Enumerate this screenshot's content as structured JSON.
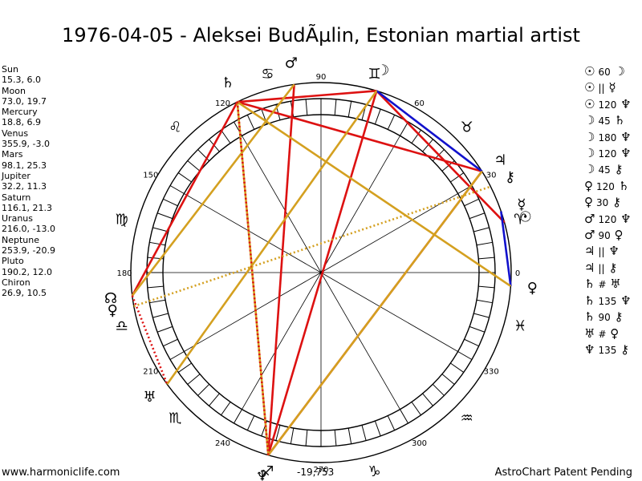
{
  "title": "1976-04-05 - Aleksei BudÃµlin, Estonian martial artist",
  "planets": [
    {
      "name": "Sun",
      "pos": "15.3, 6.0"
    },
    {
      "name": "Moon",
      "pos": "73.0, 19.7"
    },
    {
      "name": "Mercury",
      "pos": "18.8, 6.9"
    },
    {
      "name": "Venus",
      "pos": "355.9, -3.0"
    },
    {
      "name": "Mars",
      "pos": "98.1, 25.3"
    },
    {
      "name": "Jupiter",
      "pos": "32.2, 11.3"
    },
    {
      "name": "Saturn",
      "pos": "116.1, 21.3"
    },
    {
      "name": "Uranus",
      "pos": "216.0, -13.0"
    },
    {
      "name": "Neptune",
      "pos": "253.9, -20.9"
    },
    {
      "name": "Pluto",
      "pos": "190.2, 12.0"
    },
    {
      "name": "Chiron",
      "pos": "26.9, 10.5"
    }
  ],
  "aspects": [
    {
      "p1": "☉",
      "angle": "60",
      "p2": "☽"
    },
    {
      "p1": "☉",
      "angle": "||",
      "p2": "☿"
    },
    {
      "p1": "☉",
      "angle": "120",
      "p2": "♆"
    },
    {
      "p1": "☽",
      "angle": "45",
      "p2": "♄"
    },
    {
      "p1": "☽",
      "angle": "180",
      "p2": "♆"
    },
    {
      "p1": "☽",
      "angle": "120",
      "p2": "♆"
    },
    {
      "p1": "☽",
      "angle": "45",
      "p2": "⚷"
    },
    {
      "p1": "♀",
      "angle": "120",
      "p2": "♄"
    },
    {
      "p1": "♀",
      "angle": "30",
      "p2": "⚷"
    },
    {
      "p1": "♂",
      "angle": "120",
      "p2": "♆"
    },
    {
      "p1": "♂",
      "angle": "90",
      "p2": "♀"
    },
    {
      "p1": "♃",
      "angle": "||",
      "p2": "♆"
    },
    {
      "p1": "♃",
      "angle": "||",
      "p2": "⚷"
    },
    {
      "p1": "♄",
      "angle": "#",
      "p2": "♅"
    },
    {
      "p1": "♄",
      "angle": "135",
      "p2": "♆"
    },
    {
      "p1": "♄",
      "angle": "90",
      "p2": "⚷"
    },
    {
      "p1": "♅",
      "angle": "#",
      "p2": "♀"
    },
    {
      "p1": "♆",
      "angle": "135",
      "p2": "⚷"
    }
  ],
  "wheel": {
    "degree_labels": [
      "0",
      "30",
      "60",
      "90",
      "120",
      "150",
      "180",
      "210",
      "240",
      "270",
      "300",
      "330"
    ],
    "signs": [
      "♈",
      "♉",
      "♊",
      "♋",
      "♌",
      "♍",
      "♎",
      "♏",
      "♐",
      "♑",
      "♒",
      "♓"
    ],
    "planet_glyphs": [
      {
        "glyph": "☉",
        "lon": 15.3
      },
      {
        "glyph": "☽",
        "lon": 73.0
      },
      {
        "glyph": "☿",
        "lon": 18.8
      },
      {
        "glyph": "♀",
        "lon": 355.9
      },
      {
        "glyph": "♂",
        "lon": 98.1
      },
      {
        "glyph": "♃",
        "lon": 32.2
      },
      {
        "glyph": "♄",
        "lon": 116.1
      },
      {
        "glyph": "♅",
        "lon": 216.0
      },
      {
        "glyph": "♆",
        "lon": 253.9
      },
      {
        "glyph": "♀",
        "lon": 190.2
      },
      {
        "glyph": "⚷",
        "lon": 26.9
      },
      {
        "glyph": "☊",
        "lon": 187.0
      }
    ],
    "aspect_lines": [
      {
        "a": 15.3,
        "b": 73.0,
        "color": "#dd1111"
      },
      {
        "a": 73.0,
        "b": 253.9,
        "color": "#dd1111"
      },
      {
        "a": 32.2,
        "b": 253.9,
        "color": "#dd1111"
      },
      {
        "a": 32.2,
        "b": 116.1,
        "color": "#dd1111"
      },
      {
        "a": 116.1,
        "b": 187.0,
        "color": "#dd1111"
      },
      {
        "a": 116.1,
        "b": 73.0,
        "color": "#dd1111"
      },
      {
        "a": 98.1,
        "b": 253.9,
        "color": "#dd1111"
      },
      {
        "a": 73.0,
        "b": 32.2,
        "color": "#1111cc"
      },
      {
        "a": 355.9,
        "b": 18.8,
        "color": "#1111cc"
      },
      {
        "a": 73.0,
        "b": 216.0,
        "color": "#d4a020"
      },
      {
        "a": 98.1,
        "b": 187.0,
        "color": "#d4a020"
      },
      {
        "a": 116.1,
        "b": 355.9,
        "color": "#d4a020"
      },
      {
        "a": 116.1,
        "b": 253.9,
        "color": "#d4a020"
      },
      {
        "a": 32.2,
        "b": 253.9,
        "color": "#d4a020"
      }
    ],
    "dotted_lines": [
      {
        "a": 116.1,
        "b": 253.9,
        "color": "#dd1111"
      },
      {
        "a": 187.0,
        "b": 216.0,
        "color": "#dd1111"
      },
      {
        "a": 190.2,
        "b": 26.9,
        "color": "#d4a020"
      }
    ]
  },
  "footer": {
    "website": "www.harmoniclife.com",
    "value": "-19,753",
    "patent": "AstroChart Patent Pending"
  }
}
